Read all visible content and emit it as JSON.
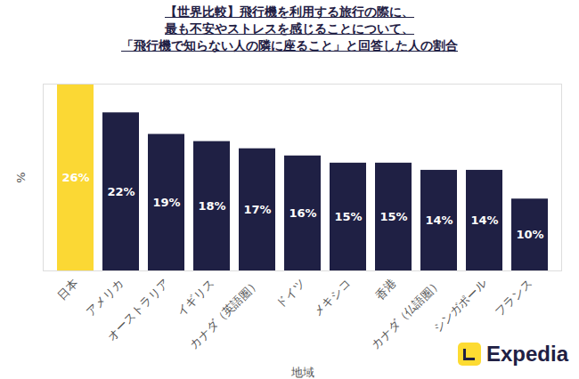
{
  "chart_data": {
    "type": "bar",
    "title": "【世界比較】飛行機を利用する旅行の際に、\n最も不安やストレスを感じることについて、\n「飛行機で知らない人の隣に座ること」と回答した人の割合",
    "x_label": "地域",
    "y_label": "%",
    "categories": [
      "日本",
      "アメリカ",
      "オーストラリア",
      "イギリス",
      "カナダ（英語圏）",
      "ドイツ",
      "メキシコ",
      "香港",
      "カナダ（仏語圏）",
      "シンガポール",
      "フランス"
    ],
    "values": [
      26,
      22,
      19,
      18,
      17,
      16,
      15,
      15,
      14,
      14,
      10
    ],
    "value_labels": [
      "26%",
      "22%",
      "19%",
      "18%",
      "17%",
      "16%",
      "15%",
      "15%",
      "14%",
      "14%",
      "10%"
    ],
    "colors": [
      "#fbd834",
      "#1f2044",
      "#1f2044",
      "#1f2044",
      "#1f2044",
      "#1f2044",
      "#1f2044",
      "#1f2044",
      "#1f2044",
      "#1f2044",
      "#1f2044"
    ],
    "ylim": [
      0,
      26
    ],
    "yticks": [],
    "tick_labels": "x",
    "data_labels": true,
    "grid": false,
    "annotations": [
      "Expedia"
    ]
  }
}
